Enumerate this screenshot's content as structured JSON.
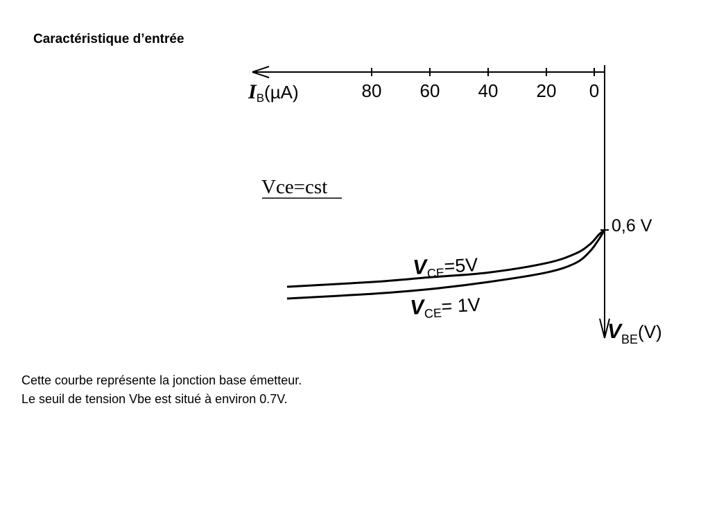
{
  "page": {
    "title": "Caractéristique d’entrée",
    "caption_lines": [
      "Cette courbe représente la jonction base émetteur.",
      "Le seuil de tension Vbe est situé à environ 0.7V."
    ]
  },
  "chart_data": {
    "type": "line",
    "title": "",
    "x_axis": {
      "symbol": "I",
      "subscript": "B",
      "unit": "(µA)",
      "ticks": [
        80,
        60,
        40,
        20,
        0
      ],
      "direction": "reversed (increasing to the left)"
    },
    "y_axis": {
      "symbol": "V",
      "subscript": "BE",
      "unit": "(V)",
      "direction": "increasing downward",
      "marked_value_label": "0,6 V",
      "marked_value": 0.6
    },
    "condition_label": "Vce=cst",
    "series": [
      {
        "name": "V_CE=5V",
        "label_main": "V",
        "label_sub": "CE",
        "label_tail": "=5V",
        "points": [
          [
            0,
            0.6
          ],
          [
            2,
            0.61
          ],
          [
            5,
            0.63
          ],
          [
            10,
            0.65
          ],
          [
            20,
            0.67
          ],
          [
            40,
            0.69
          ],
          [
            60,
            0.7
          ],
          [
            80,
            0.71
          ],
          [
            110,
            0.72
          ]
        ]
      },
      {
        "name": "V_CE= 1V",
        "label_main": "V",
        "label_sub": "CE",
        "label_tail": "= 1V",
        "points": [
          [
            0,
            0.6
          ],
          [
            2,
            0.62
          ],
          [
            5,
            0.645
          ],
          [
            10,
            0.67
          ],
          [
            20,
            0.69
          ],
          [
            40,
            0.71
          ],
          [
            60,
            0.725
          ],
          [
            80,
            0.735
          ],
          [
            110,
            0.745
          ]
        ]
      }
    ],
    "legend": "inline labels on curves",
    "grid": false
  }
}
